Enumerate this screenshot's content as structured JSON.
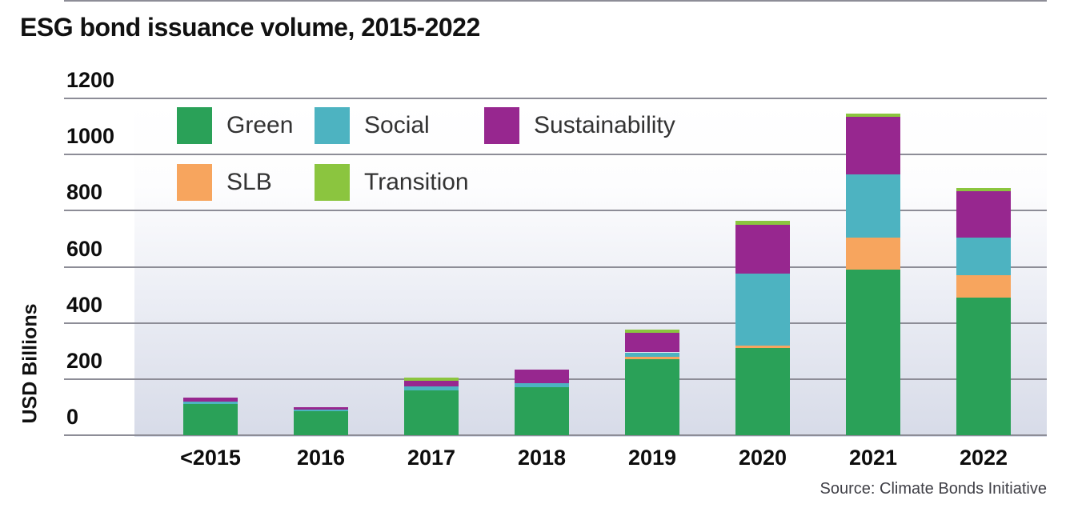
{
  "title": "ESG bond issuance volume, 2015-2022",
  "y_axis": {
    "label": "USD Billions",
    "ticks": [
      0,
      200,
      400,
      600,
      800,
      1000,
      1200
    ]
  },
  "source": "Source: Climate Bonds Initiative",
  "colors": {
    "green": "#2aa158",
    "social": "#4db3c1",
    "sustainability": "#97278f",
    "slb": "#f7a55e",
    "transition": "#8bc53f",
    "gridline": "#8d8d97",
    "plot_gradient_bottom": "#d7dbe8",
    "text": "#0d0d0d"
  },
  "chart_data": {
    "type": "bar",
    "stacked": true,
    "title": "ESG bond issuance volume, 2015-2022",
    "xlabel": "",
    "ylabel": "USD Billions",
    "ylim": [
      0,
      1200
    ],
    "grid": true,
    "legend_position": "top-left inside plot, two rows",
    "categories": [
      "<2015",
      "2016",
      "2017",
      "2018",
      "2019",
      "2020",
      "2021",
      "2022"
    ],
    "stack_order_bottom_to_top": [
      "Green",
      "SLB",
      "Social",
      "Sustainability",
      "Transition"
    ],
    "series": [
      {
        "name": "Green",
        "color": "#2aa158",
        "values": [
          110,
          85,
          160,
          170,
          270,
          310,
          590,
          490
        ]
      },
      {
        "name": "SLB",
        "color": "#f7a55e",
        "values": [
          0,
          0,
          0,
          0,
          10,
          10,
          115,
          80
        ]
      },
      {
        "name": "Social",
        "color": "#4db3c1",
        "values": [
          10,
          5,
          15,
          15,
          15,
          255,
          225,
          135
        ]
      },
      {
        "name": "Sustainability",
        "color": "#97278f",
        "values": [
          15,
          10,
          20,
          50,
          70,
          175,
          205,
          165
        ]
      },
      {
        "name": "Transition",
        "color": "#8bc53f",
        "values": [
          0,
          0,
          10,
          0,
          10,
          15,
          10,
          10
        ]
      }
    ],
    "totals": [
      135,
      100,
      205,
      235,
      375,
      765,
      1145,
      880
    ],
    "legend": {
      "rows": [
        [
          "Green",
          "Social",
          "Sustainability"
        ],
        [
          "SLB",
          "Transition"
        ]
      ]
    }
  }
}
